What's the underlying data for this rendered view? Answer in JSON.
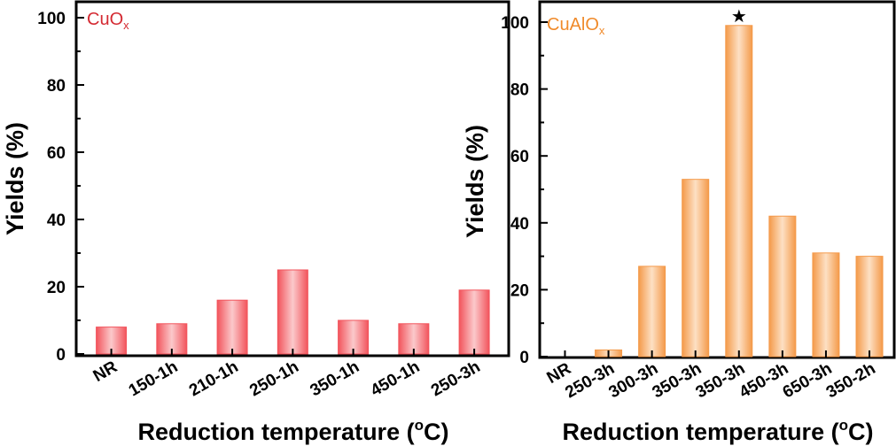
{
  "chart_data": [
    {
      "type": "bar",
      "panel_label": "CuO",
      "panel_label_sub": "x",
      "label_color": "#d42a32",
      "bar_color": "#f2545c",
      "bar_highlight": "#fbc9cb",
      "categories": [
        "NR",
        "150-1h",
        "210-1h",
        "250-1h",
        "350-1h",
        "450-1h",
        "250-3h"
      ],
      "values": [
        8,
        9,
        16,
        25,
        10,
        9,
        19
      ],
      "xlabel": "Reduction temperature (",
      "xlabel_sup": "o",
      "xlabel_end": "C)",
      "ylabel": "Yields (%)",
      "ylim": [
        0,
        105
      ],
      "yticks": [
        "0",
        "20",
        "40",
        "60",
        "80",
        "100"
      ],
      "ytick_values": [
        0,
        20,
        40,
        60,
        80,
        100
      ],
      "grid": false
    },
    {
      "type": "bar",
      "panel_label": "CuAlO",
      "panel_label_sub": "x",
      "label_color": "#f08a2a",
      "bar_color": "#f49a4a",
      "bar_highlight": "#fde0c4",
      "categories": [
        "NR",
        "250-3h",
        "300-3h",
        "350-3h",
        "350-3h",
        "450-3h",
        "650-3h",
        "350-2h"
      ],
      "values": [
        0,
        2,
        27,
        53,
        99,
        42,
        31,
        30
      ],
      "marker": "★",
      "marker_index": 4,
      "xlabel": "Reduction temperature (",
      "xlabel_sup": "o",
      "xlabel_end": "C)",
      "ylabel": "Yields (%)",
      "ylim": [
        0,
        105
      ],
      "yticks": [
        "0",
        "20",
        "40",
        "60",
        "80",
        "100"
      ],
      "ytick_values": [
        0,
        20,
        40,
        60,
        80,
        100
      ],
      "grid": false
    }
  ]
}
